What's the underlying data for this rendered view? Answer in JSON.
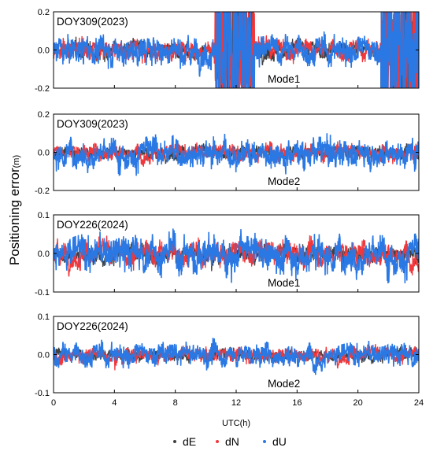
{
  "chart_data": {
    "type": "scatter",
    "ylabel_main": "Positioning error",
    "ylabel_unit": "(m)",
    "xlabel": "UTC(h)",
    "xlim": [
      0,
      24
    ],
    "xticks": [
      0,
      4,
      8,
      12,
      16,
      20,
      24
    ],
    "legend": {
      "placement": "bottom",
      "entries": [
        {
          "name": "dE",
          "color": "#404040"
        },
        {
          "name": "dN",
          "color": "#f0383c"
        },
        {
          "name": "dU",
          "color": "#2a78e4"
        }
      ]
    },
    "panels": [
      {
        "label": "DOY309(2023)",
        "mode": "Mode1",
        "ylim": [
          -0.2,
          0.2
        ],
        "yticks": [
          "-0.2",
          "0.0",
          "0.2"
        ],
        "series_amplitude": {
          "dE": 0.02,
          "dN": 0.025,
          "dU": 0.035
        },
        "divergence_windows": [
          [
            10.6,
            13.2
          ],
          [
            21.5,
            24.0
          ]
        ]
      },
      {
        "label": "DOY309(2023)",
        "mode": "Mode2",
        "ylim": [
          -0.2,
          0.2
        ],
        "yticks": [
          "-0.2",
          "0.0",
          "0.2"
        ],
        "series_amplitude": {
          "dE": 0.015,
          "dN": 0.02,
          "dU": 0.035
        },
        "divergence_windows": []
      },
      {
        "label": "DOY226(2024)",
        "mode": "Mode1",
        "ylim": [
          -0.1,
          0.1
        ],
        "yticks": [
          "-0.1",
          "0.0",
          "0.1"
        ],
        "series_amplitude": {
          "dE": 0.01,
          "dN": 0.015,
          "dU": 0.022
        },
        "divergence_windows": []
      },
      {
        "label": "DOY226(2024)",
        "mode": "Mode2",
        "ylim": [
          -0.1,
          0.1
        ],
        "yticks": [
          "-0.1",
          "0.0",
          "0.1"
        ],
        "series_amplitude": {
          "dE": 0.007,
          "dN": 0.009,
          "dU": 0.014
        },
        "divergence_windows": []
      }
    ]
  }
}
